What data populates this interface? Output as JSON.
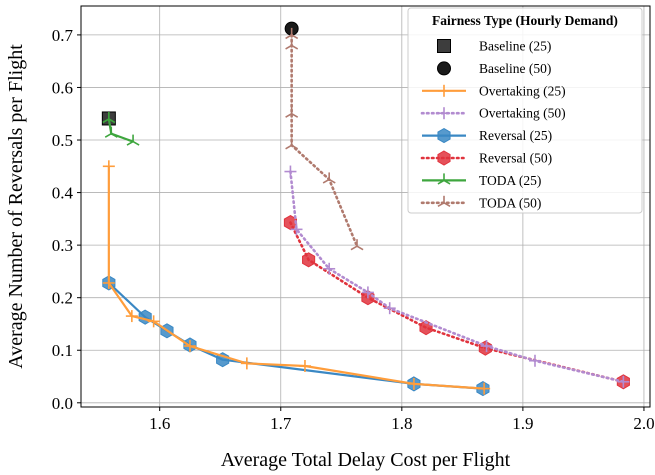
{
  "chart_data": {
    "type": "line",
    "xlabel": "Average Total Delay Cost per Flight",
    "ylabel": "Average Number of Reversals per Flight",
    "xlim": [
      1.535,
      2.005
    ],
    "ylim": [
      -0.008,
      0.755
    ],
    "xticks": [
      1.6,
      1.7,
      1.8,
      1.9,
      2.0
    ],
    "xtick_labels": [
      "1.6",
      "1.7",
      "1.8",
      "1.9",
      "2.0"
    ],
    "yticks": [
      0.0,
      0.1,
      0.2,
      0.3,
      0.4,
      0.5,
      0.6,
      0.7
    ],
    "ytick_labels": [
      "0.0",
      "0.1",
      "0.2",
      "0.3",
      "0.4",
      "0.5",
      "0.6",
      "0.7"
    ],
    "grid": true,
    "legend": {
      "title": "Fairness Type (Hourly Demand)",
      "placement": "top-right"
    },
    "series": [
      {
        "name": "Baseline (25)",
        "kind": "point",
        "marker": "square",
        "color": "#333333",
        "x": [
          1.558
        ],
        "y": [
          0.541
        ]
      },
      {
        "name": "Baseline (50)",
        "kind": "point",
        "marker": "circle",
        "color": "#1a1a1a",
        "x": [
          1.709
        ],
        "y": [
          0.712
        ]
      },
      {
        "name": "Overtaking (25)",
        "kind": "line",
        "marker": "plus",
        "dash": "solid",
        "color": "#ff9d3b",
        "x": [
          1.558,
          1.558,
          1.577,
          1.595,
          1.625,
          1.672,
          1.72,
          1.81,
          1.868
        ],
        "y": [
          0.45,
          0.228,
          0.165,
          0.155,
          0.108,
          0.075,
          0.07,
          0.036,
          0.027
        ]
      },
      {
        "name": "Overtaking (50)",
        "kind": "line",
        "marker": "plus",
        "dash": "dotted",
        "color": "#b28bd0",
        "x": [
          1.708,
          1.713,
          1.74,
          1.772,
          1.79,
          1.87,
          1.91,
          1.983
        ],
        "y": [
          0.44,
          0.33,
          0.255,
          0.21,
          0.18,
          0.108,
          0.08,
          0.04
        ]
      },
      {
        "name": "Reversal (25)",
        "kind": "line",
        "marker": "hexagon",
        "dash": "solid",
        "color": "#3a88c4",
        "x": [
          1.558,
          1.588,
          1.606,
          1.625,
          1.652,
          1.81,
          1.867
        ],
        "y": [
          0.228,
          0.163,
          0.137,
          0.11,
          0.082,
          0.036,
          0.027
        ]
      },
      {
        "name": "Reversal (50)",
        "kind": "line",
        "marker": "hexagon",
        "dash": "dotted",
        "color": "#e0333d",
        "x": [
          1.708,
          1.723,
          1.772,
          1.82,
          1.869,
          1.983
        ],
        "y": [
          0.343,
          0.272,
          0.2,
          0.143,
          0.104,
          0.04
        ]
      },
      {
        "name": "TODA  (25)",
        "kind": "line",
        "marker": "tri",
        "dash": "solid",
        "color": "#3ea63e",
        "x": [
          1.558,
          1.56,
          1.578
        ],
        "y": [
          0.54,
          0.512,
          0.497
        ]
      },
      {
        "name": "TODA  (50)",
        "kind": "line",
        "marker": "tri",
        "dash": "dotted",
        "color": "#b07a6e",
        "x": [
          1.709,
          1.709,
          1.709,
          1.709,
          1.74,
          1.763
        ],
        "y": [
          0.7,
          0.68,
          0.55,
          0.49,
          0.425,
          0.298
        ]
      }
    ]
  }
}
